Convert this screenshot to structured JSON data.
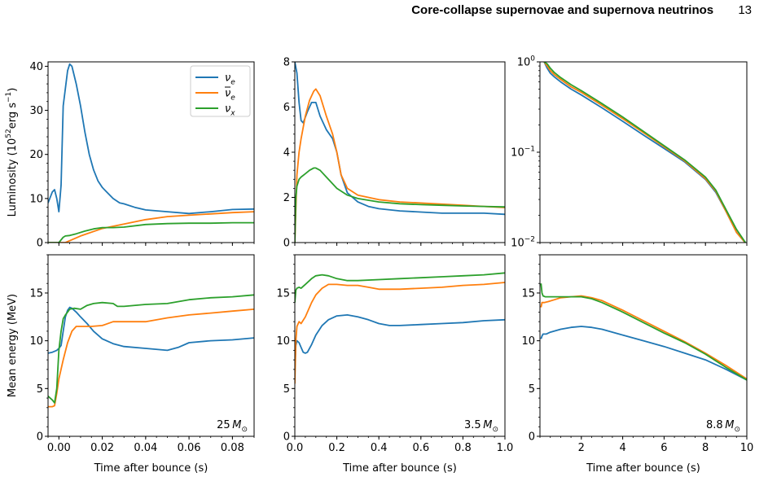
{
  "header": {
    "title": "Core-collapse supernovae and supernova neutrinos",
    "page_number": "13"
  },
  "colors": {
    "nu_e": "#1f77b4",
    "nubar_e": "#ff7f0e",
    "nu_x": "#2ca02c"
  },
  "chart_data": [
    {
      "type": "line",
      "panel": "luminosity-25",
      "ylabel": "Luminosity (10^52 erg s^-1)",
      "ylabel_parts": {
        "base": "Luminosity (10",
        "exp": "52",
        "units": "erg s",
        "exp2": "−1",
        "close": ")"
      },
      "xlim": [
        -0.005,
        0.09
      ],
      "ylim": [
        0,
        41
      ],
      "xticks": [],
      "yticks": [
        0,
        10,
        20,
        30,
        40
      ],
      "ytick_labels": [
        "0",
        "10",
        "20",
        "30",
        "40"
      ],
      "yscale": "linear",
      "legend": "top-right",
      "series": [
        {
          "name": "ν_e",
          "label_base": "ν",
          "label_sub": "e",
          "bar": false,
          "color": "nu_e",
          "x": [
            -0.005,
            -0.003,
            -0.002,
            -0.001,
            0.0,
            0.001,
            0.002,
            0.003,
            0.004,
            0.005,
            0.006,
            0.008,
            0.01,
            0.012,
            0.014,
            0.016,
            0.018,
            0.02,
            0.022,
            0.025,
            0.028,
            0.03,
            0.035,
            0.04,
            0.05,
            0.06,
            0.07,
            0.08,
            0.09
          ],
          "y": [
            9,
            11.5,
            12,
            10,
            7,
            13,
            31,
            35,
            39,
            40.5,
            40,
            36,
            31,
            25,
            20,
            16.5,
            14,
            12.5,
            11.5,
            10,
            9,
            8.8,
            8,
            7.4,
            7,
            6.6,
            7,
            7.5,
            7.6
          ]
        },
        {
          "name": "ν̄_e",
          "label_base": "ν",
          "label_sub": "e",
          "bar": true,
          "color": "nubar_e",
          "x": [
            -0.005,
            0.003,
            0.01,
            0.02,
            0.03,
            0.04,
            0.05,
            0.06,
            0.07,
            0.08,
            0.09
          ],
          "y": [
            0,
            0,
            1.5,
            3.2,
            4.2,
            5.2,
            5.9,
            6.2,
            6.5,
            6.8,
            7
          ]
        },
        {
          "name": "ν_x",
          "label_base": "ν",
          "label_sub": "x",
          "bar": false,
          "color": "nu_x",
          "x": [
            -0.005,
            0.0,
            0.002,
            0.003,
            0.005,
            0.008,
            0.012,
            0.016,
            0.02,
            0.025,
            0.03,
            0.04,
            0.05,
            0.06,
            0.07,
            0.08,
            0.09
          ],
          "y": [
            0,
            0,
            1.2,
            1.5,
            1.6,
            2,
            2.6,
            3.1,
            3.4,
            3.4,
            3.5,
            4.1,
            4.3,
            4.4,
            4.4,
            4.5,
            4.5
          ]
        }
      ]
    },
    {
      "type": "line",
      "panel": "luminosity-3.5",
      "xlim": [
        0,
        1
      ],
      "ylim": [
        0,
        8
      ],
      "xticks": [],
      "yticks": [
        0,
        2,
        4,
        6,
        8
      ],
      "ytick_labels": [
        "0",
        "2",
        "4",
        "6",
        "8"
      ],
      "yscale": "linear",
      "series": [
        {
          "color": "nu_e",
          "x": [
            0,
            0.01,
            0.02,
            0.03,
            0.04,
            0.06,
            0.08,
            0.1,
            0.12,
            0.15,
            0.18,
            0.2,
            0.22,
            0.25,
            0.3,
            0.35,
            0.4,
            0.5,
            0.6,
            0.7,
            0.8,
            0.9,
            1.0
          ],
          "y": [
            8,
            7.5,
            6.2,
            5.4,
            5.3,
            5.8,
            6.2,
            6.2,
            5.6,
            5,
            4.6,
            4,
            3,
            2.2,
            1.8,
            1.6,
            1.5,
            1.4,
            1.35,
            1.3,
            1.3,
            1.3,
            1.25
          ]
        },
        {
          "color": "nubar_e",
          "x": [
            0,
            0.005,
            0.01,
            0.02,
            0.03,
            0.05,
            0.07,
            0.09,
            0.1,
            0.12,
            0.15,
            0.18,
            0.2,
            0.22,
            0.25,
            0.3,
            0.4,
            0.5,
            0.6,
            0.7,
            0.8,
            0.9,
            1.0
          ],
          "y": [
            0,
            1.5,
            3,
            4,
            4.6,
            5.6,
            6.3,
            6.7,
            6.8,
            6.5,
            5.6,
            4.8,
            4,
            3,
            2.4,
            2.1,
            1.9,
            1.8,
            1.75,
            1.7,
            1.65,
            1.6,
            1.55
          ]
        },
        {
          "color": "nu_x",
          "x": [
            0,
            0.005,
            0.01,
            0.02,
            0.03,
            0.05,
            0.07,
            0.09,
            0.1,
            0.12,
            0.15,
            0.2,
            0.25,
            0.3,
            0.4,
            0.5,
            0.6,
            0.7,
            0.8,
            0.9,
            1.0
          ],
          "y": [
            0,
            2,
            2.5,
            2.8,
            2.9,
            3.05,
            3.2,
            3.3,
            3.3,
            3.2,
            2.9,
            2.4,
            2.1,
            1.95,
            1.8,
            1.72,
            1.68,
            1.65,
            1.62,
            1.6,
            1.58
          ]
        }
      ]
    },
    {
      "type": "line",
      "panel": "luminosity-8.8",
      "xlim": [
        0,
        10
      ],
      "ylim": [
        0.01,
        1
      ],
      "xticks": [],
      "yticks": [
        0.01,
        0.1,
        1
      ],
      "ytick_labels": [
        {
          "base": "10",
          "exp": "−2"
        },
        {
          "base": "10",
          "exp": "−1"
        },
        {
          "base": "10",
          "exp": "0"
        }
      ],
      "yscale": "log",
      "series": [
        {
          "color": "nu_e",
          "x": [
            0.2,
            0.35,
            0.5,
            0.7,
            1,
            1.5,
            2,
            3,
            4,
            5,
            6,
            7,
            8,
            8.5,
            9,
            9.5,
            10
          ],
          "y": [
            1,
            0.85,
            0.75,
            0.68,
            0.6,
            0.5,
            0.43,
            0.31,
            0.22,
            0.155,
            0.11,
            0.078,
            0.05,
            0.036,
            0.022,
            0.013,
            0.0095
          ]
        },
        {
          "color": "nubar_e",
          "x": [
            0.2,
            0.35,
            0.5,
            0.7,
            1,
            1.5,
            2,
            3,
            4,
            5,
            6,
            7,
            8,
            8.5,
            9,
            9.5,
            10
          ],
          "y": [
            1,
            0.9,
            0.8,
            0.72,
            0.64,
            0.53,
            0.46,
            0.33,
            0.235,
            0.165,
            0.115,
            0.08,
            0.051,
            0.037,
            0.022,
            0.013,
            0.0095
          ]
        },
        {
          "color": "nu_x",
          "x": [
            0.2,
            0.35,
            0.5,
            0.7,
            1,
            1.5,
            2,
            3,
            4,
            5,
            6,
            7,
            8,
            8.5,
            9,
            9.5,
            10
          ],
          "y": [
            1,
            0.95,
            0.85,
            0.76,
            0.67,
            0.56,
            0.48,
            0.345,
            0.245,
            0.17,
            0.118,
            0.082,
            0.053,
            0.038,
            0.023,
            0.014,
            0.0095
          ]
        }
      ]
    },
    {
      "type": "line",
      "panel": "energy-25",
      "ylabel": "Mean energy (MeV)",
      "xlabel": "Time after bounce (s)",
      "annotation": {
        "num": "25",
        "unit": "M",
        "sub": "⊙"
      },
      "xlim": [
        -0.005,
        0.09
      ],
      "ylim": [
        0,
        19
      ],
      "xticks": [
        0,
        0.02,
        0.04,
        0.06,
        0.08
      ],
      "xtick_labels": [
        "0.00",
        "0.02",
        "0.04",
        "0.06",
        "0.08"
      ],
      "yticks": [
        0,
        5,
        10,
        15
      ],
      "ytick_labels": [
        "0",
        "5",
        "10",
        "15"
      ],
      "yscale": "linear",
      "series": [
        {
          "color": "nu_e",
          "x": [
            -0.005,
            -0.003,
            -0.001,
            0.0,
            0.001,
            0.002,
            0.003,
            0.004,
            0.005,
            0.006,
            0.008,
            0.01,
            0.013,
            0.016,
            0.02,
            0.025,
            0.03,
            0.04,
            0.05,
            0.055,
            0.06,
            0.07,
            0.08,
            0.09
          ],
          "y": [
            8.7,
            8.8,
            9.0,
            9.2,
            9.5,
            11,
            12.5,
            13.2,
            13.5,
            13.4,
            13,
            12.5,
            11.8,
            11,
            10.2,
            9.7,
            9.4,
            9.2,
            9,
            9.3,
            9.8,
            10,
            10.1,
            10.3
          ]
        },
        {
          "color": "nubar_e",
          "x": [
            -0.005,
            -0.003,
            -0.002,
            -0.001,
            0.0,
            0.002,
            0.004,
            0.006,
            0.008,
            0.01,
            0.015,
            0.02,
            0.025,
            0.03,
            0.04,
            0.05,
            0.06,
            0.07,
            0.08,
            0.09
          ],
          "y": [
            3.1,
            3.1,
            3.2,
            4.5,
            6,
            8,
            9.8,
            11,
            11.5,
            11.5,
            11.5,
            11.6,
            12,
            12,
            12,
            12.4,
            12.7,
            12.9,
            13.1,
            13.3
          ]
        },
        {
          "color": "nu_x",
          "x": [
            -0.005,
            -0.003,
            -0.002,
            -0.001,
            0.0,
            0.001,
            0.002,
            0.003,
            0.004,
            0.005,
            0.007,
            0.01,
            0.013,
            0.016,
            0.02,
            0.025,
            0.027,
            0.03,
            0.04,
            0.05,
            0.06,
            0.07,
            0.08,
            0.09
          ],
          "y": [
            4.2,
            3.8,
            3.5,
            5,
            9,
            11,
            12.3,
            12.7,
            13,
            13.3,
            13.4,
            13.3,
            13.7,
            13.9,
            14,
            13.9,
            13.6,
            13.6,
            13.8,
            13.9,
            14.3,
            14.5,
            14.6,
            14.8
          ]
        }
      ]
    },
    {
      "type": "line",
      "panel": "energy-3.5",
      "xlabel": "Time after bounce (s)",
      "annotation": {
        "num": "3.5",
        "unit": "M",
        "sub": "⊙"
      },
      "xlim": [
        0,
        1
      ],
      "ylim": [
        0,
        19
      ],
      "xticks": [
        0,
        0.2,
        0.4,
        0.6,
        0.8,
        1.0
      ],
      "xtick_labels": [
        "0.0",
        "0.2",
        "0.4",
        "0.6",
        "0.8",
        "1.0"
      ],
      "yticks": [
        0,
        5,
        10,
        15
      ],
      "ytick_labels": [
        "0",
        "5",
        "10",
        "15"
      ],
      "yscale": "linear",
      "series": [
        {
          "color": "nu_e",
          "x": [
            0,
            0.005,
            0.01,
            0.02,
            0.03,
            0.04,
            0.05,
            0.06,
            0.08,
            0.1,
            0.13,
            0.16,
            0.2,
            0.25,
            0.3,
            0.35,
            0.4,
            0.45,
            0.5,
            0.6,
            0.7,
            0.8,
            0.9,
            1.0
          ],
          "y": [
            7,
            9.5,
            10,
            9.8,
            9.3,
            8.8,
            8.7,
            8.8,
            9.6,
            10.6,
            11.6,
            12.2,
            12.6,
            12.7,
            12.5,
            12.2,
            11.8,
            11.6,
            11.6,
            11.7,
            11.8,
            11.9,
            12.1,
            12.2
          ]
        },
        {
          "color": "nubar_e",
          "x": [
            0,
            0.005,
            0.01,
            0.02,
            0.03,
            0.05,
            0.08,
            0.1,
            0.13,
            0.16,
            0.2,
            0.25,
            0.3,
            0.35,
            0.4,
            0.45,
            0.5,
            0.6,
            0.7,
            0.8,
            0.9,
            1.0
          ],
          "y": [
            5.5,
            10,
            11.5,
            12,
            11.8,
            12.5,
            14,
            14.8,
            15.5,
            15.9,
            15.9,
            15.8,
            15.8,
            15.6,
            15.4,
            15.4,
            15.4,
            15.5,
            15.6,
            15.8,
            15.9,
            16.1
          ]
        },
        {
          "color": "nu_x",
          "x": [
            0,
            0.005,
            0.01,
            0.02,
            0.03,
            0.05,
            0.08,
            0.1,
            0.13,
            0.16,
            0.2,
            0.25,
            0.3,
            0.4,
            0.5,
            0.6,
            0.7,
            0.8,
            0.9,
            1.0
          ],
          "y": [
            14,
            15.3,
            15.5,
            15.6,
            15.5,
            15.9,
            16.5,
            16.8,
            16.9,
            16.8,
            16.5,
            16.3,
            16.3,
            16.4,
            16.5,
            16.6,
            16.7,
            16.8,
            16.9,
            17.1
          ]
        }
      ]
    },
    {
      "type": "line",
      "panel": "energy-8.8",
      "xlabel": "Time after bounce (s)",
      "annotation": {
        "num": "8.8",
        "unit": "M",
        "sub": "⊙"
      },
      "xlim": [
        0,
        10
      ],
      "ylim": [
        0,
        19
      ],
      "xticks": [
        2,
        4,
        6,
        8,
        10
      ],
      "xtick_labels": [
        "2",
        "4",
        "6",
        "8",
        "10"
      ],
      "yticks": [
        0,
        5,
        10,
        15
      ],
      "ytick_labels": [
        "0",
        "5",
        "10",
        "15"
      ],
      "yscale": "linear",
      "series": [
        {
          "color": "nu_e",
          "x": [
            0.05,
            0.1,
            0.15,
            0.3,
            0.5,
            1,
            1.5,
            2,
            2.5,
            3,
            4,
            5,
            6,
            7,
            8,
            9,
            10
          ],
          "y": [
            10.2,
            10.5,
            10.7,
            10.7,
            10.9,
            11.2,
            11.4,
            11.5,
            11.4,
            11.2,
            10.6,
            10,
            9.4,
            8.7,
            8,
            7,
            5.9
          ]
        },
        {
          "color": "nubar_e",
          "x": [
            0.05,
            0.1,
            0.2,
            0.4,
            0.7,
            1,
            1.5,
            2,
            2.5,
            3,
            4,
            5,
            6,
            7,
            8,
            9,
            10
          ],
          "y": [
            13.5,
            14,
            14,
            14.1,
            14.3,
            14.5,
            14.6,
            14.7,
            14.5,
            14.2,
            13.2,
            12.1,
            11,
            9.9,
            8.7,
            7.4,
            6
          ]
        },
        {
          "color": "nu_x",
          "x": [
            0.05,
            0.1,
            0.15,
            0.25,
            0.4,
            0.7,
            1,
            1.5,
            2,
            2.5,
            3,
            4,
            5,
            6,
            7,
            8,
            9,
            10
          ],
          "y": [
            16,
            15,
            14.7,
            14.6,
            14.6,
            14.6,
            14.6,
            14.6,
            14.6,
            14.4,
            14,
            13,
            11.9,
            10.8,
            9.8,
            8.6,
            7.2,
            5.9
          ]
        }
      ]
    }
  ]
}
